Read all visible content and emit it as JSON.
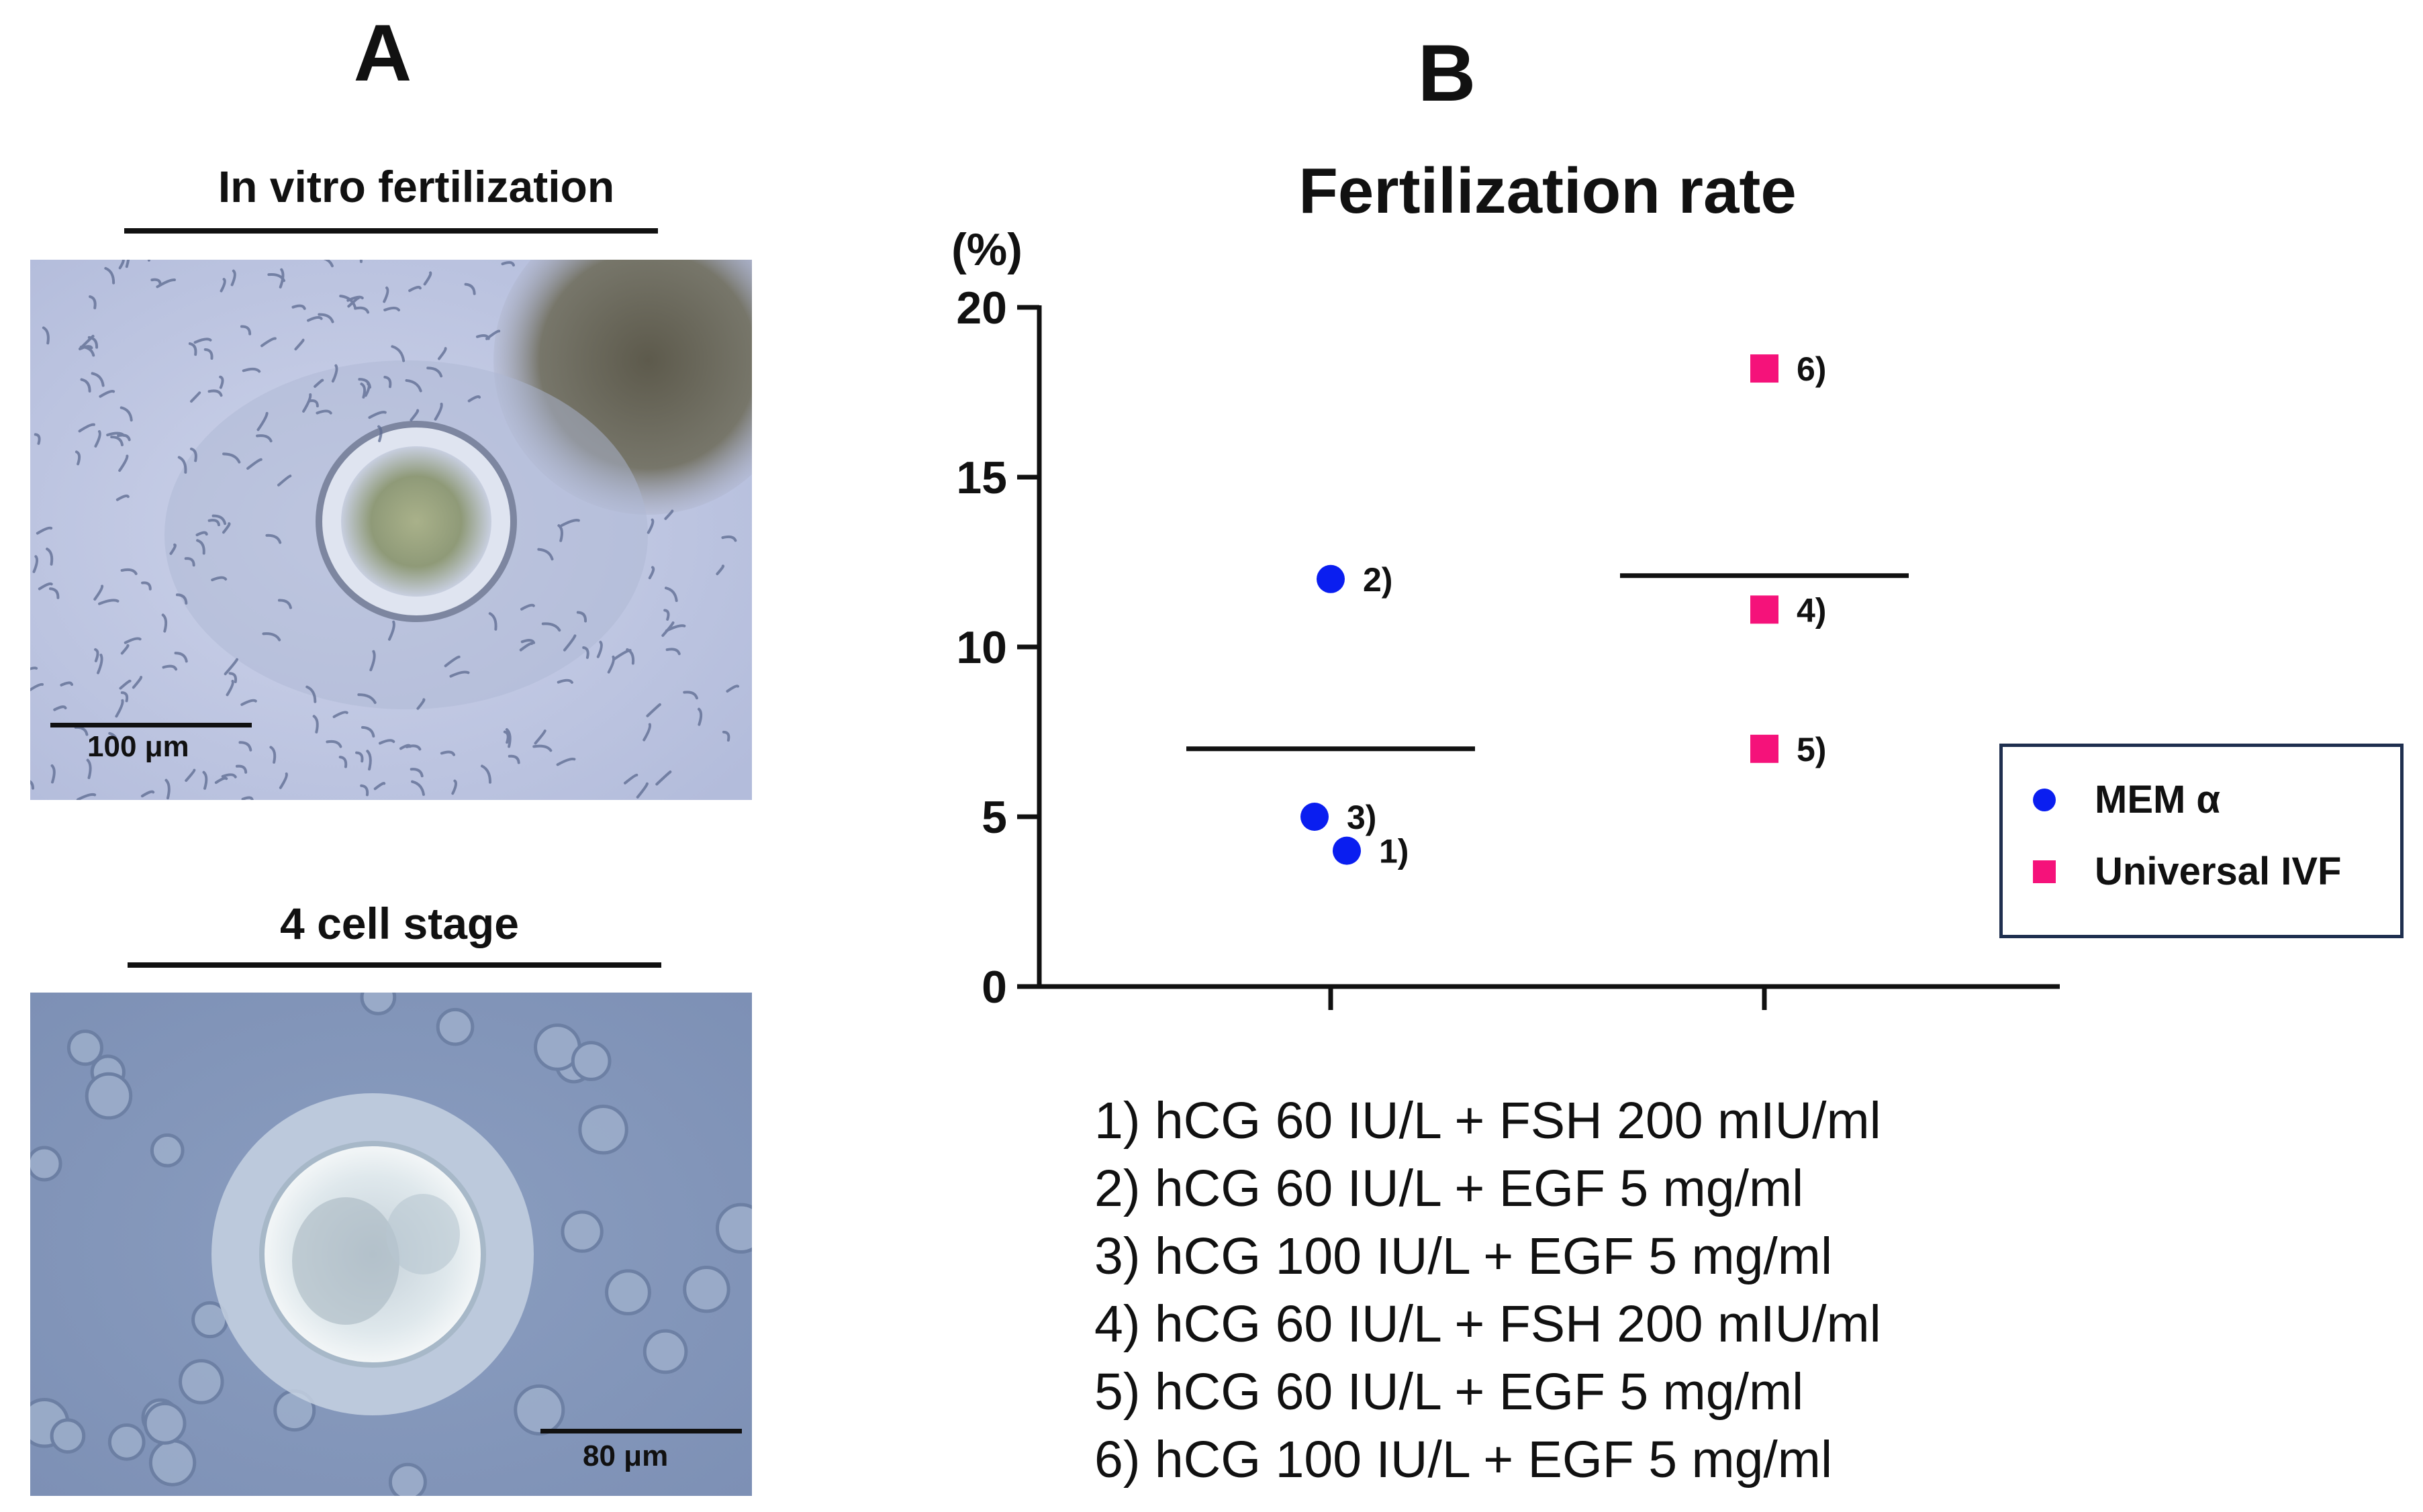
{
  "panel_a": {
    "letter": "A",
    "top_title": "In vitro fertilization",
    "top_scale": "100 μm",
    "bottom_title": "4 cell stage",
    "bottom_scale": "80 μm"
  },
  "panel_b": {
    "letter": "B"
  },
  "chart_data": {
    "type": "scatter",
    "title": "Fertilization rate",
    "ylabel": "(%)",
    "xlabel": "",
    "ylim": [
      0,
      20
    ],
    "yticks": [
      "0",
      "5",
      "10",
      "15",
      "20"
    ],
    "categories": [
      "MEM α",
      "Universal IVF"
    ],
    "series": [
      {
        "name": "MEM α",
        "color": "#0a1ef0",
        "marker": "circle",
        "group": 0,
        "mean": 7,
        "points": [
          {
            "label": "1)",
            "value": 4,
            "jitter": 0.04
          },
          {
            "label": "2)",
            "value": 12,
            "jitter": 0.0
          },
          {
            "label": "3)",
            "value": 5,
            "jitter": -0.04
          }
        ]
      },
      {
        "name": "Universal IVF",
        "color": "#f5127a",
        "marker": "square",
        "group": 1,
        "mean": 12.1,
        "points": [
          {
            "label": "4)",
            "value": 11.1,
            "jitter": 0.0
          },
          {
            "label": "5)",
            "value": 7,
            "jitter": 0.0
          },
          {
            "label": "6)",
            "value": 18.2,
            "jitter": 0.0
          }
        ]
      }
    ],
    "legend_position": "right"
  },
  "conditions": [
    "1) hCG 60 IU/L + FSH 200 mIU/ml",
    "2) hCG 60 IU/L + EGF 5 mg/ml",
    "3) hCG 100 IU/L + EGF 5 mg/ml",
    "4) hCG 60 IU/L + FSH 200 mIU/ml",
    "5) hCG 60 IU/L + EGF 5 mg/ml",
    "6) hCG 100 IU/L + EGF 5 mg/ml"
  ]
}
